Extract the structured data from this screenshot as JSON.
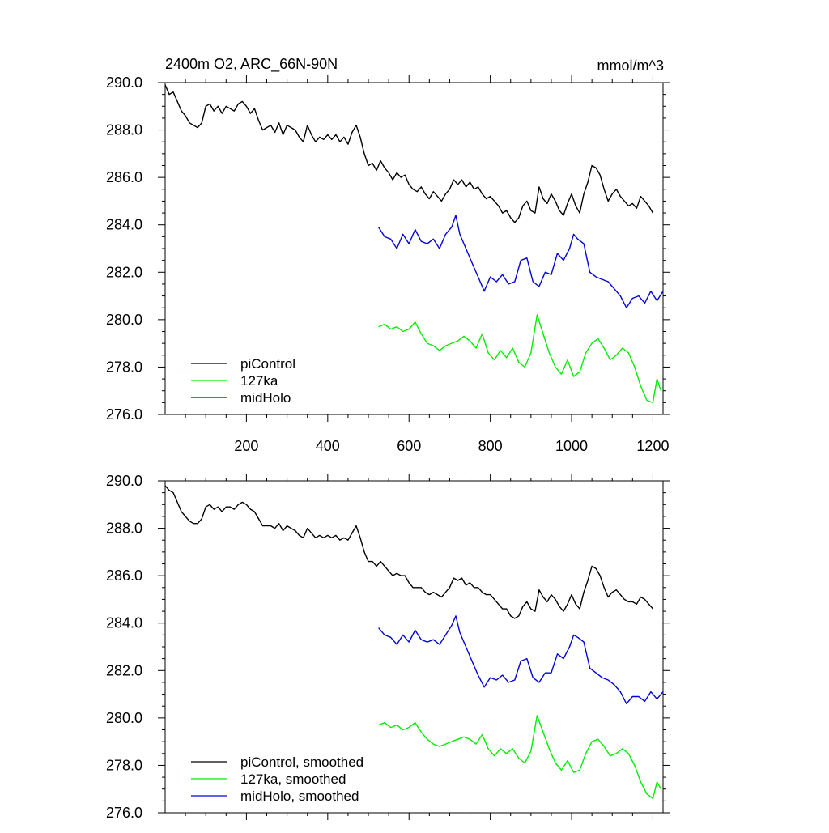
{
  "chart_data": [
    {
      "type": "line",
      "title": "2400m O2, ARC_66N-90N",
      "units": "mmol/m^3",
      "xlabel": "",
      "ylabel": "",
      "xlim": [
        0,
        1225
      ],
      "ylim": [
        276.0,
        290.0
      ],
      "xticks": [
        200,
        400,
        600,
        800,
        1000,
        1200
      ],
      "xtick_labels": [
        "200",
        "400",
        "600",
        "800",
        "1000",
        "1200"
      ],
      "yticks": [
        276,
        278,
        280,
        282,
        284,
        286,
        288,
        290
      ],
      "ytick_labels": [
        "276.0",
        "278.0",
        "280.0",
        "282.0",
        "284.0",
        "286.0",
        "288.0",
        "290.0"
      ],
      "grid": false,
      "legend": "bottom-left",
      "series": [
        {
          "name": "piControl",
          "color": "#000000",
          "x": [
            0,
            10,
            20,
            30,
            40,
            50,
            60,
            70,
            80,
            90,
            100,
            110,
            120,
            130,
            140,
            150,
            160,
            170,
            180,
            190,
            200,
            210,
            220,
            230,
            240,
            250,
            260,
            270,
            280,
            290,
            300,
            310,
            320,
            330,
            340,
            350,
            360,
            370,
            380,
            390,
            400,
            410,
            420,
            430,
            440,
            450,
            460,
            470,
            480,
            490,
            500,
            510,
            520,
            530,
            540,
            550,
            560,
            570,
            580,
            590,
            600,
            610,
            620,
            630,
            640,
            650,
            660,
            670,
            680,
            690,
            700,
            710,
            720,
            730,
            740,
            750,
            760,
            770,
            780,
            790,
            800,
            810,
            820,
            830,
            840,
            850,
            860,
            870,
            880,
            890,
            900,
            910,
            920,
            930,
            940,
            950,
            960,
            970,
            980,
            990,
            1000,
            1010,
            1020,
            1030,
            1040,
            1050,
            1060,
            1070,
            1080,
            1090,
            1100,
            1110,
            1120,
            1130,
            1140,
            1150,
            1160,
            1170,
            1180,
            1190,
            1200
          ],
          "values": [
            289.9,
            289.5,
            289.6,
            289.2,
            288.8,
            288.6,
            288.3,
            288.2,
            288.1,
            288.3,
            289.0,
            289.1,
            288.8,
            289.0,
            288.7,
            289.0,
            288.9,
            288.8,
            289.1,
            289.2,
            289.0,
            288.7,
            288.9,
            288.4,
            288.0,
            288.1,
            288.2,
            287.9,
            288.3,
            287.8,
            288.2,
            288.1,
            288.0,
            287.7,
            287.5,
            288.2,
            287.8,
            287.5,
            287.7,
            287.6,
            287.8,
            287.6,
            287.8,
            287.5,
            287.7,
            287.4,
            287.9,
            288.2,
            287.7,
            287.0,
            286.5,
            286.6,
            286.3,
            286.7,
            286.4,
            286.2,
            285.9,
            286.2,
            286.0,
            286.1,
            285.7,
            285.5,
            285.4,
            285.6,
            285.3,
            285.1,
            285.4,
            285.2,
            285.0,
            285.3,
            285.5,
            285.9,
            285.7,
            285.9,
            285.6,
            285.8,
            285.5,
            285.6,
            285.3,
            285.1,
            285.2,
            285.0,
            284.8,
            284.5,
            284.6,
            284.3,
            284.1,
            284.3,
            284.8,
            285.0,
            284.6,
            284.5,
            285.6,
            285.1,
            284.9,
            285.3,
            285.0,
            284.6,
            284.4,
            284.9,
            285.3,
            284.8,
            284.5,
            285.3,
            285.8,
            286.5,
            286.4,
            286.1,
            285.5,
            285.0,
            285.3,
            285.5,
            285.2,
            285.0,
            284.8,
            284.9,
            284.7,
            285.2,
            285.0,
            284.8,
            284.5
          ]
        },
        {
          "name": "127ka",
          "color": "#00ee00",
          "x": [
            525,
            540,
            555,
            570,
            585,
            600,
            615,
            630,
            645,
            660,
            675,
            690,
            705,
            720,
            735,
            750,
            765,
            780,
            795,
            810,
            825,
            840,
            855,
            870,
            885,
            900,
            915,
            930,
            945,
            960,
            975,
            990,
            1005,
            1020,
            1035,
            1050,
            1065,
            1080,
            1095,
            1110,
            1125,
            1140,
            1155,
            1170,
            1185,
            1200,
            1210,
            1220
          ],
          "values": [
            279.7,
            279.8,
            279.6,
            279.7,
            279.5,
            279.6,
            279.9,
            279.4,
            279.0,
            278.9,
            278.7,
            278.9,
            279.0,
            279.1,
            279.3,
            279.1,
            278.8,
            279.4,
            278.6,
            278.3,
            278.7,
            278.4,
            278.8,
            278.2,
            278.0,
            278.6,
            280.2,
            279.4,
            278.6,
            278.0,
            277.7,
            278.3,
            277.6,
            277.8,
            278.6,
            279.0,
            279.2,
            278.8,
            278.3,
            278.5,
            278.8,
            278.6,
            278.0,
            277.2,
            276.6,
            276.5,
            277.5,
            277.0
          ]
        },
        {
          "name": "midHolo",
          "color": "#0000dd",
          "x": [
            525,
            540,
            555,
            570,
            585,
            600,
            615,
            630,
            645,
            660,
            675,
            690,
            705,
            715,
            725,
            740,
            755,
            770,
            785,
            800,
            815,
            830,
            845,
            860,
            875,
            890,
            905,
            920,
            935,
            950,
            965,
            980,
            995,
            1005,
            1015,
            1030,
            1045,
            1060,
            1075,
            1090,
            1105,
            1120,
            1135,
            1150,
            1165,
            1180,
            1195,
            1210,
            1225
          ],
          "values": [
            283.9,
            283.5,
            283.4,
            283.0,
            283.6,
            283.2,
            283.8,
            283.3,
            283.2,
            283.4,
            283.0,
            283.6,
            283.9,
            284.4,
            283.6,
            283.0,
            282.4,
            281.8,
            281.2,
            281.8,
            281.6,
            281.9,
            281.5,
            281.6,
            282.5,
            282.6,
            281.6,
            281.4,
            282.0,
            281.9,
            282.8,
            282.5,
            283.0,
            283.6,
            283.4,
            283.2,
            282.0,
            281.8,
            281.7,
            281.6,
            281.3,
            281.0,
            280.5,
            280.9,
            281.0,
            280.7,
            281.2,
            280.8,
            281.2
          ]
        }
      ]
    },
    {
      "type": "line",
      "title": "",
      "units": "",
      "xlabel": "",
      "ylabel": "",
      "xlim": [
        0,
        1225
      ],
      "ylim": [
        276.0,
        290.0
      ],
      "yticks": [
        276,
        278,
        280,
        282,
        284,
        286,
        288,
        290
      ],
      "ytick_labels": [
        "276.0",
        "278.0",
        "280.0",
        "282.0",
        "284.0",
        "286.0",
        "288.0",
        "290.0"
      ],
      "grid": false,
      "legend": "bottom-left",
      "series": [
        {
          "name": "piControl, smoothed",
          "color": "#000000",
          "x": [
            0,
            10,
            20,
            30,
            40,
            50,
            60,
            70,
            80,
            90,
            100,
            110,
            120,
            130,
            140,
            150,
            160,
            170,
            180,
            190,
            200,
            210,
            220,
            230,
            240,
            250,
            260,
            270,
            280,
            290,
            300,
            310,
            320,
            330,
            340,
            350,
            360,
            370,
            380,
            390,
            400,
            410,
            420,
            430,
            440,
            450,
            460,
            470,
            480,
            490,
            500,
            510,
            520,
            530,
            540,
            550,
            560,
            570,
            580,
            590,
            600,
            610,
            620,
            630,
            640,
            650,
            660,
            670,
            680,
            690,
            700,
            710,
            720,
            730,
            740,
            750,
            760,
            770,
            780,
            790,
            800,
            810,
            820,
            830,
            840,
            850,
            860,
            870,
            880,
            890,
            900,
            910,
            920,
            930,
            940,
            950,
            960,
            970,
            980,
            990,
            1000,
            1010,
            1020,
            1030,
            1040,
            1050,
            1060,
            1070,
            1080,
            1090,
            1100,
            1110,
            1120,
            1130,
            1140,
            1150,
            1160,
            1170,
            1180,
            1190,
            1200
          ],
          "values": [
            289.8,
            289.6,
            289.5,
            289.1,
            288.7,
            288.5,
            288.3,
            288.2,
            288.2,
            288.4,
            288.9,
            289.0,
            288.8,
            288.9,
            288.7,
            288.9,
            288.9,
            288.8,
            289.0,
            289.1,
            289.0,
            288.8,
            288.7,
            288.4,
            288.1,
            288.1,
            288.1,
            288.0,
            288.2,
            287.9,
            288.1,
            288.0,
            287.9,
            287.7,
            287.6,
            288.0,
            287.8,
            287.6,
            287.7,
            287.6,
            287.7,
            287.6,
            287.7,
            287.5,
            287.6,
            287.5,
            287.8,
            288.1,
            287.6,
            287.0,
            286.6,
            286.6,
            286.4,
            286.6,
            286.4,
            286.2,
            286.0,
            286.1,
            286.0,
            286.0,
            285.7,
            285.5,
            285.5,
            285.5,
            285.3,
            285.2,
            285.3,
            285.2,
            285.1,
            285.3,
            285.5,
            285.9,
            285.8,
            285.9,
            285.6,
            285.7,
            285.5,
            285.5,
            285.3,
            285.2,
            285.2,
            285.0,
            284.8,
            284.6,
            284.6,
            284.3,
            284.2,
            284.3,
            284.7,
            284.9,
            284.6,
            284.5,
            285.4,
            285.1,
            284.9,
            285.2,
            285.0,
            284.7,
            284.5,
            284.8,
            285.2,
            284.8,
            284.6,
            285.3,
            285.8,
            286.4,
            286.3,
            286.0,
            285.5,
            285.1,
            285.3,
            285.4,
            285.2,
            285.0,
            284.9,
            284.9,
            284.8,
            285.1,
            285.0,
            284.8,
            284.6
          ]
        },
        {
          "name": "127ka, smoothed",
          "color": "#00ee00",
          "x": [
            525,
            540,
            555,
            570,
            585,
            600,
            615,
            630,
            645,
            660,
            675,
            690,
            705,
            720,
            735,
            750,
            765,
            780,
            795,
            810,
            825,
            840,
            855,
            870,
            885,
            900,
            915,
            930,
            945,
            960,
            975,
            990,
            1005,
            1020,
            1035,
            1050,
            1065,
            1080,
            1095,
            1110,
            1125,
            1140,
            1155,
            1170,
            1185,
            1200,
            1210,
            1220
          ],
          "values": [
            279.7,
            279.8,
            279.6,
            279.7,
            279.5,
            279.6,
            279.8,
            279.4,
            279.1,
            278.9,
            278.8,
            278.9,
            279.0,
            279.1,
            279.2,
            279.1,
            278.9,
            279.3,
            278.7,
            278.4,
            278.7,
            278.5,
            278.7,
            278.3,
            278.1,
            278.6,
            280.1,
            279.4,
            278.7,
            278.1,
            277.8,
            278.2,
            277.7,
            277.8,
            278.5,
            279.0,
            279.1,
            278.8,
            278.4,
            278.5,
            278.7,
            278.5,
            278.0,
            277.3,
            276.8,
            276.6,
            277.3,
            277.0
          ]
        },
        {
          "name": "midHolo, smoothed",
          "color": "#0000dd",
          "x": [
            525,
            540,
            555,
            570,
            585,
            600,
            615,
            630,
            645,
            660,
            675,
            690,
            705,
            715,
            725,
            740,
            755,
            770,
            785,
            800,
            815,
            830,
            845,
            860,
            875,
            890,
            905,
            920,
            935,
            950,
            965,
            980,
            995,
            1005,
            1015,
            1030,
            1045,
            1060,
            1075,
            1090,
            1105,
            1120,
            1135,
            1150,
            1165,
            1180,
            1195,
            1210,
            1225
          ],
          "values": [
            283.8,
            283.5,
            283.4,
            283.1,
            283.5,
            283.2,
            283.7,
            283.3,
            283.2,
            283.3,
            283.1,
            283.5,
            283.9,
            284.3,
            283.6,
            283.0,
            282.4,
            281.8,
            281.3,
            281.7,
            281.6,
            281.8,
            281.5,
            281.6,
            282.4,
            282.5,
            281.7,
            281.5,
            281.9,
            281.9,
            282.7,
            282.5,
            283.0,
            283.5,
            283.4,
            283.2,
            282.1,
            281.9,
            281.7,
            281.6,
            281.4,
            281.1,
            280.6,
            280.9,
            280.9,
            280.7,
            281.1,
            280.8,
            281.1
          ]
        }
      ]
    }
  ]
}
